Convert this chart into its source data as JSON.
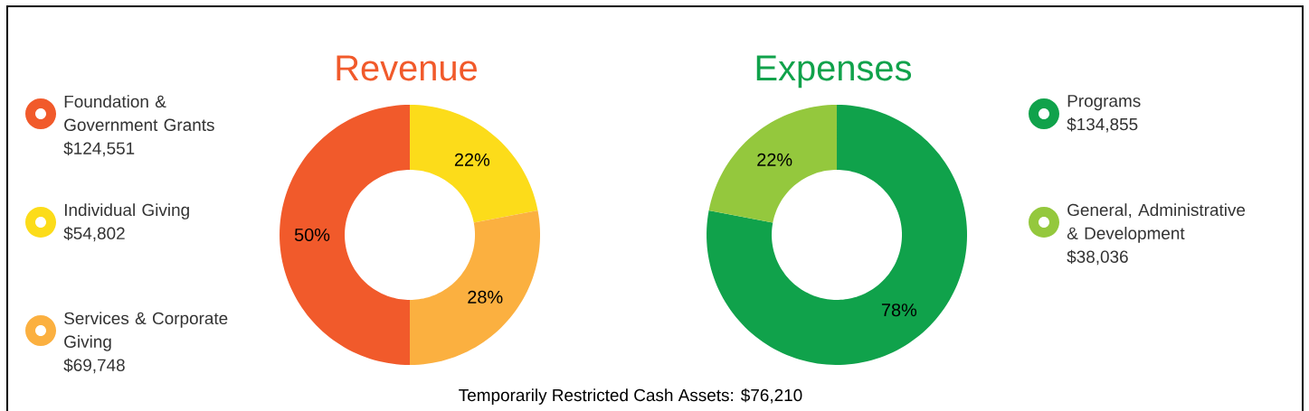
{
  "chart_data": [
    {
      "type": "donut",
      "title": "Revenue",
      "categories": [
        "Foundation & Government Grants",
        "Individual Giving",
        "Services & Corporate Giving"
      ],
      "values": [
        50,
        22,
        28
      ],
      "colors": [
        "#f15a2b",
        "#fcdc1a",
        "#fbb040"
      ],
      "value_labels": [
        "50%",
        "22%",
        "28%"
      ],
      "annotations": [
        "$124,551",
        "$54,802",
        "$69,748"
      ],
      "legend": "left"
    },
    {
      "type": "donut",
      "title": "Expenses",
      "categories": [
        "Programs",
        "General, Administrative & Development"
      ],
      "values": [
        78,
        22
      ],
      "colors": [
        "#10a24b",
        "#94c83d"
      ],
      "value_labels": [
        "78%",
        "22%"
      ],
      "annotations": [
        "$134,855",
        "$38,036"
      ],
      "legend": "right"
    },
    {
      "type": "other",
      "annotations": [
        "Temporarily Restricted Cash Assets: $76,210"
      ]
    }
  ]
}
